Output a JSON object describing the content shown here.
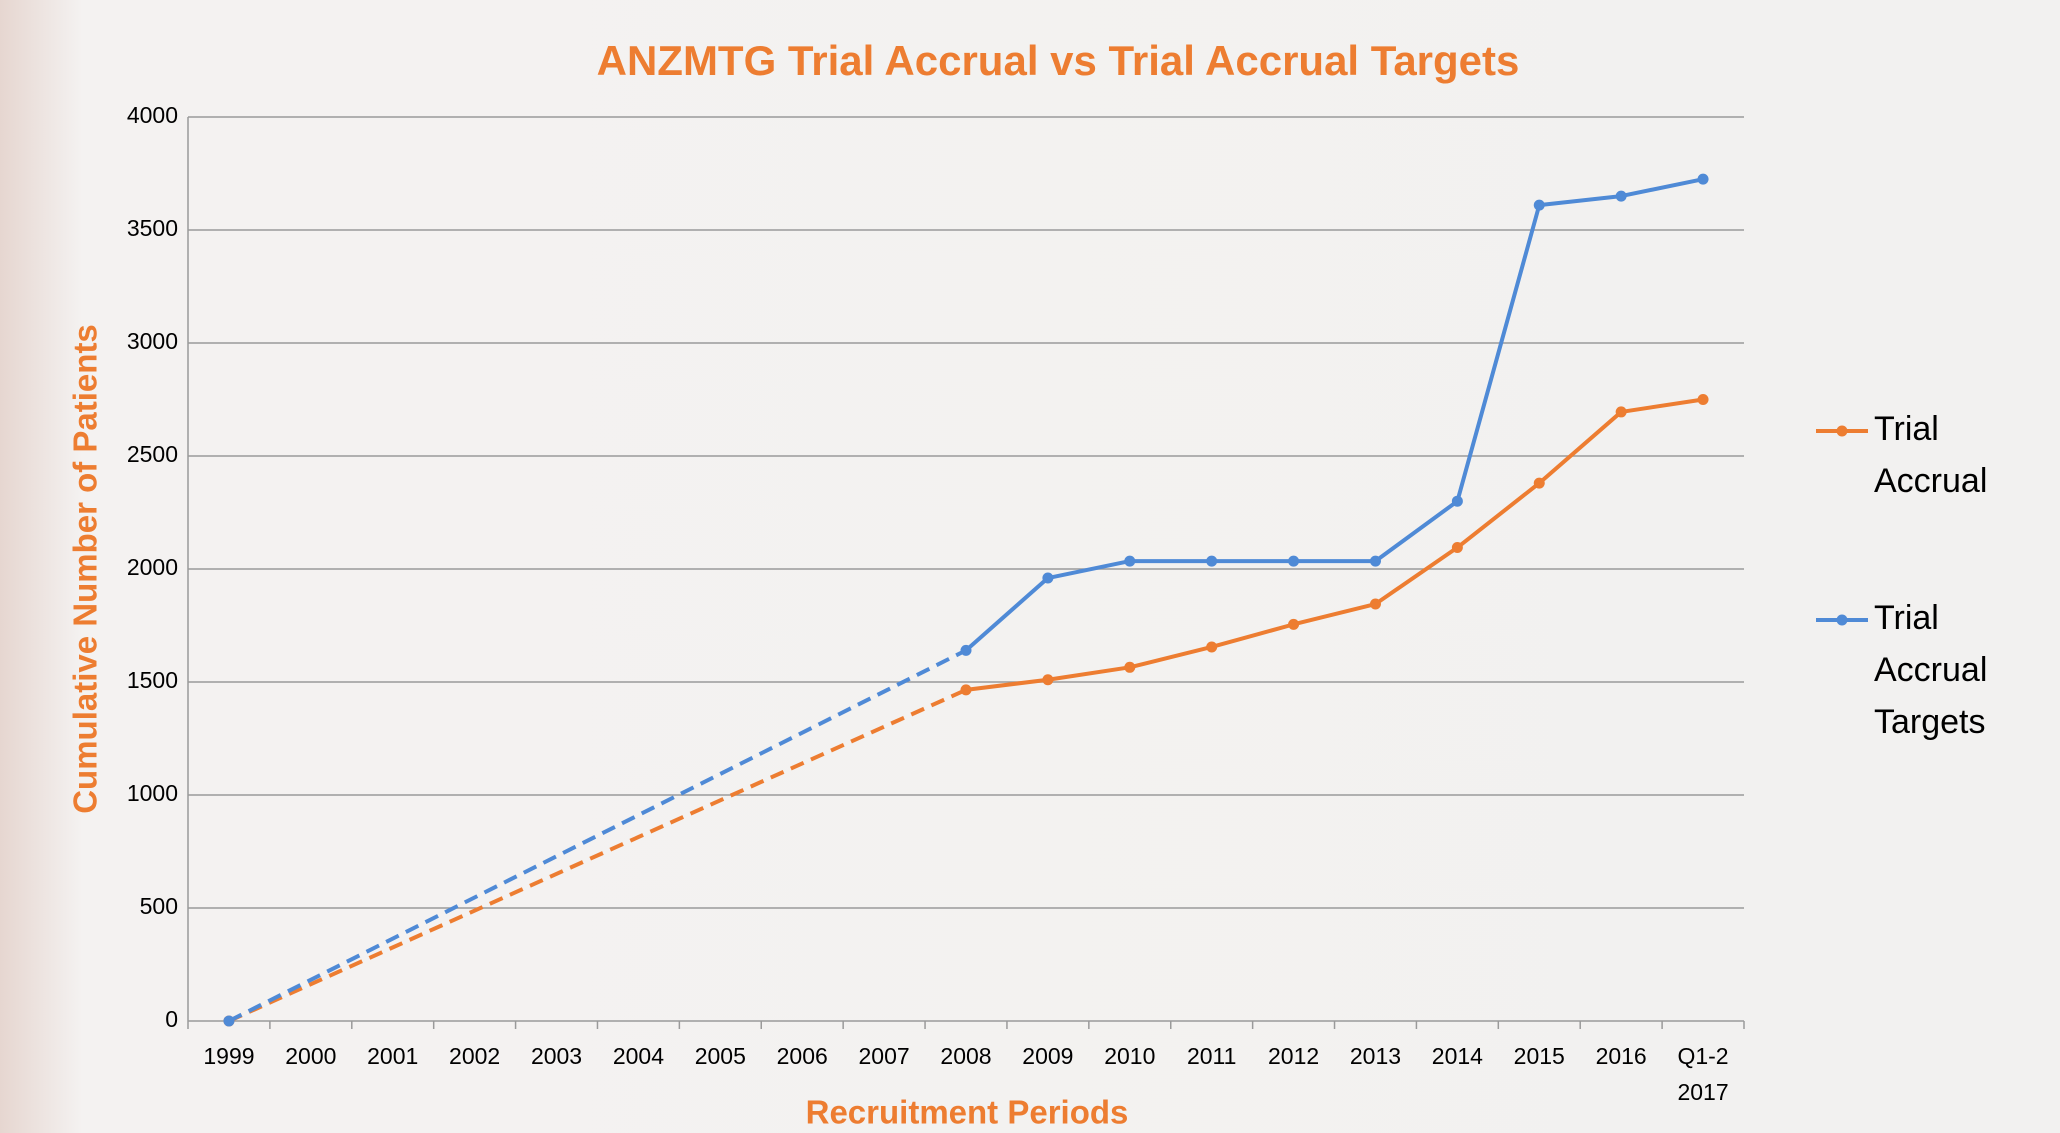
{
  "chart_data": {
    "type": "line",
    "title": "ANZMTG Trial Accrual vs Trial Accrual Targets",
    "x_label": "Recruitment Periods",
    "y_label": "Cumulative Number of Patients",
    "categories": [
      "1999",
      "2000",
      "2001",
      "2002",
      "2003",
      "2004",
      "2005",
      "2006",
      "2007",
      "2008",
      "2009",
      "2010",
      "2011",
      "2012",
      "2013",
      "2014",
      "2015",
      "2016",
      "Q1-2\n2017"
    ],
    "series": [
      {
        "name": "Trial Accrual",
        "color": "#ed7d31",
        "values": [
          0,
          null,
          null,
          null,
          null,
          null,
          null,
          null,
          null,
          1465,
          1510,
          1565,
          1655,
          1755,
          1845,
          2095,
          2380,
          2695,
          2750
        ]
      },
      {
        "name": "Trial Accrual Targets",
        "color": "#4f8ad6",
        "values": [
          0,
          null,
          null,
          null,
          null,
          null,
          null,
          null,
          null,
          1640,
          1960,
          2035,
          2035,
          2035,
          2035,
          2300,
          3610,
          3650,
          3725
        ]
      }
    ],
    "gap_style": "dashed",
    "ylim": [
      0,
      4000
    ],
    "yticks": [
      0,
      500,
      1000,
      1500,
      2000,
      2500,
      3000,
      3500,
      4000
    ],
    "grid": true,
    "legend": "right"
  }
}
